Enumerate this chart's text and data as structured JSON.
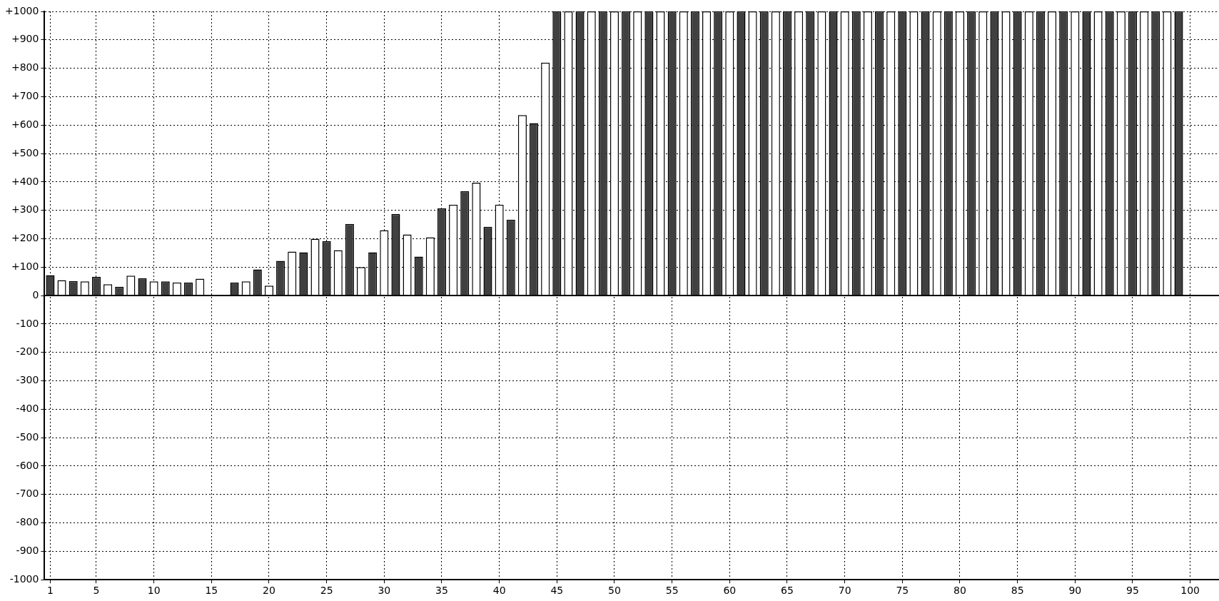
{
  "chart_data": {
    "type": "bar",
    "x": [
      1,
      2,
      3,
      4,
      5,
      6,
      7,
      8,
      9,
      10,
      11,
      12,
      13,
      14,
      15,
      16,
      17,
      18,
      19,
      20,
      21,
      22,
      23,
      24,
      25,
      26,
      27,
      28,
      29,
      30,
      31,
      32,
      33,
      34,
      35,
      36,
      37,
      38,
      39,
      40,
      41,
      42,
      43,
      44,
      45,
      46,
      47,
      48,
      49,
      50,
      51,
      52,
      53,
      54,
      55,
      56,
      57,
      58,
      59,
      60,
      61,
      62,
      63,
      64,
      65,
      66,
      67,
      68,
      69,
      70,
      71,
      72,
      73,
      74,
      75,
      76,
      77,
      78,
      79,
      80,
      81,
      82,
      83,
      84,
      85,
      86,
      87,
      88,
      89,
      90,
      91,
      92,
      93,
      94,
      95,
      96,
      97,
      98,
      99
    ],
    "values": [
      72,
      54,
      51,
      50,
      66,
      40,
      31,
      70,
      61,
      50,
      50,
      46,
      46,
      59,
      0,
      0,
      46,
      50,
      92,
      35,
      122,
      155,
      152,
      200,
      192,
      160,
      252,
      100,
      152,
      230,
      287,
      215,
      137,
      205,
      307,
      320,
      367,
      397,
      242,
      320,
      267,
      635,
      607,
      820,
      1000,
      1000,
      1000,
      1000,
      1000,
      1000,
      1000,
      1000,
      1000,
      1000,
      1000,
      1000,
      1000,
      1000,
      1000,
      1000,
      1000,
      1000,
      1000,
      1000,
      1000,
      1000,
      1000,
      1000,
      1000,
      1000,
      1000,
      1000,
      1000,
      1000,
      1000,
      1000,
      1000,
      1000,
      1000,
      1000,
      1000,
      1000,
      1000,
      1000,
      1000,
      1000,
      1000,
      1000,
      1000,
      1000,
      1000,
      1000,
      1000,
      1000,
      1000,
      1000,
      1000,
      1000,
      1000
    ],
    "colors": [
      "#404040",
      "#ffffff",
      "#404040",
      "#ffffff",
      "#404040",
      "#ffffff",
      "#404040",
      "#ffffff",
      "#404040",
      "#ffffff",
      "#404040",
      "#ffffff",
      "#404040",
      "#ffffff",
      "#404040",
      "#ffffff",
      "#404040",
      "#ffffff",
      "#404040",
      "#ffffff",
      "#404040",
      "#ffffff",
      "#404040",
      "#ffffff",
      "#404040",
      "#ffffff",
      "#404040",
      "#ffffff",
      "#404040",
      "#ffffff",
      "#404040",
      "#ffffff",
      "#404040",
      "#ffffff",
      "#404040",
      "#ffffff",
      "#404040",
      "#ffffff",
      "#404040",
      "#ffffff",
      "#404040",
      "#ffffff",
      "#404040",
      "#ffffff",
      "#404040",
      "#ffffff",
      "#404040",
      "#ffffff",
      "#404040",
      "#ffffff",
      "#404040",
      "#ffffff",
      "#404040",
      "#ffffff",
      "#404040",
      "#ffffff",
      "#404040",
      "#ffffff",
      "#404040",
      "#ffffff",
      "#404040",
      "#ffffff",
      "#404040",
      "#ffffff",
      "#404040",
      "#ffffff",
      "#404040",
      "#ffffff",
      "#404040",
      "#ffffff",
      "#404040",
      "#ffffff",
      "#404040",
      "#ffffff",
      "#404040",
      "#ffffff",
      "#404040",
      "#ffffff",
      "#404040",
      "#ffffff",
      "#404040",
      "#ffffff",
      "#404040",
      "#ffffff",
      "#404040",
      "#ffffff",
      "#404040",
      "#ffffff",
      "#404040",
      "#ffffff",
      "#404040",
      "#ffffff",
      "#404040",
      "#ffffff",
      "#404040",
      "#ffffff",
      "#404040",
      "#ffffff",
      "#404040"
    ],
    "xlim": [
      0.5,
      102.5
    ],
    "xticks": [
      1,
      5,
      10,
      15,
      20,
      25,
      30,
      35,
      40,
      45,
      50,
      55,
      60,
      65,
      70,
      75,
      80,
      85,
      90,
      95,
      100
    ],
    "ylim": [
      -1000,
      1000
    ],
    "yticks": [
      -1000,
      -900,
      -800,
      -700,
      -600,
      -500,
      -400,
      -300,
      -200,
      -100,
      0,
      {
        "value": 100,
        "label": "+100"
      },
      {
        "value": 200,
        "label": "+200"
      },
      {
        "value": 300,
        "label": "+300"
      },
      {
        "value": 400,
        "label": "+400"
      },
      {
        "value": 500,
        "label": "+500"
      },
      {
        "value": 600,
        "label": "+600"
      },
      {
        "value": 700,
        "label": "+700"
      },
      {
        "value": 800,
        "label": "+800"
      },
      {
        "value": 900,
        "label": "+900"
      },
      {
        "value": 1000,
        "label": "+1000"
      }
    ],
    "grid": true,
    "legend": false
  }
}
